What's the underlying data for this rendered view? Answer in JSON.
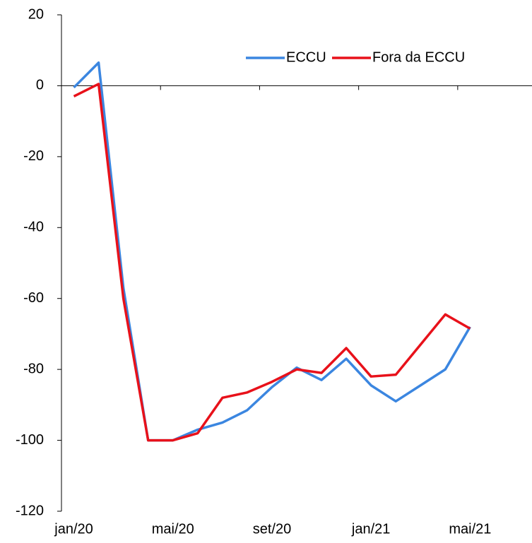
{
  "chart_data": {
    "type": "line",
    "categories": [
      "jan/20",
      null,
      null,
      null,
      "mai/20",
      null,
      null,
      null,
      "set/20",
      null,
      null,
      null,
      "jan/21",
      null,
      null,
      null,
      "mai/21",
      null,
      null
    ],
    "series": [
      {
        "name": "ECCU",
        "color": "#3b86e0",
        "values": [
          -0.5,
          6.5,
          -57,
          -100,
          -100,
          -97,
          -95,
          -91.5,
          -85,
          -79.5,
          -83,
          -77,
          -84.5,
          -89,
          -84.5,
          -80,
          -68,
          null,
          null
        ]
      },
      {
        "name": "Fora da ECCU",
        "color": "#e8111a",
        "values": [
          -3,
          0.5,
          -60,
          -100,
          -100,
          -98,
          -88,
          -86.5,
          -83.5,
          -80,
          -81,
          -74,
          -82,
          -81.5,
          -73,
          -64.5,
          -68.5,
          null,
          null
        ]
      }
    ],
    "ylim": [
      -120,
      20
    ],
    "yticks": [
      -120,
      -100,
      -80,
      -60,
      -40,
      -20,
      0,
      20
    ],
    "legend": "top-right"
  }
}
